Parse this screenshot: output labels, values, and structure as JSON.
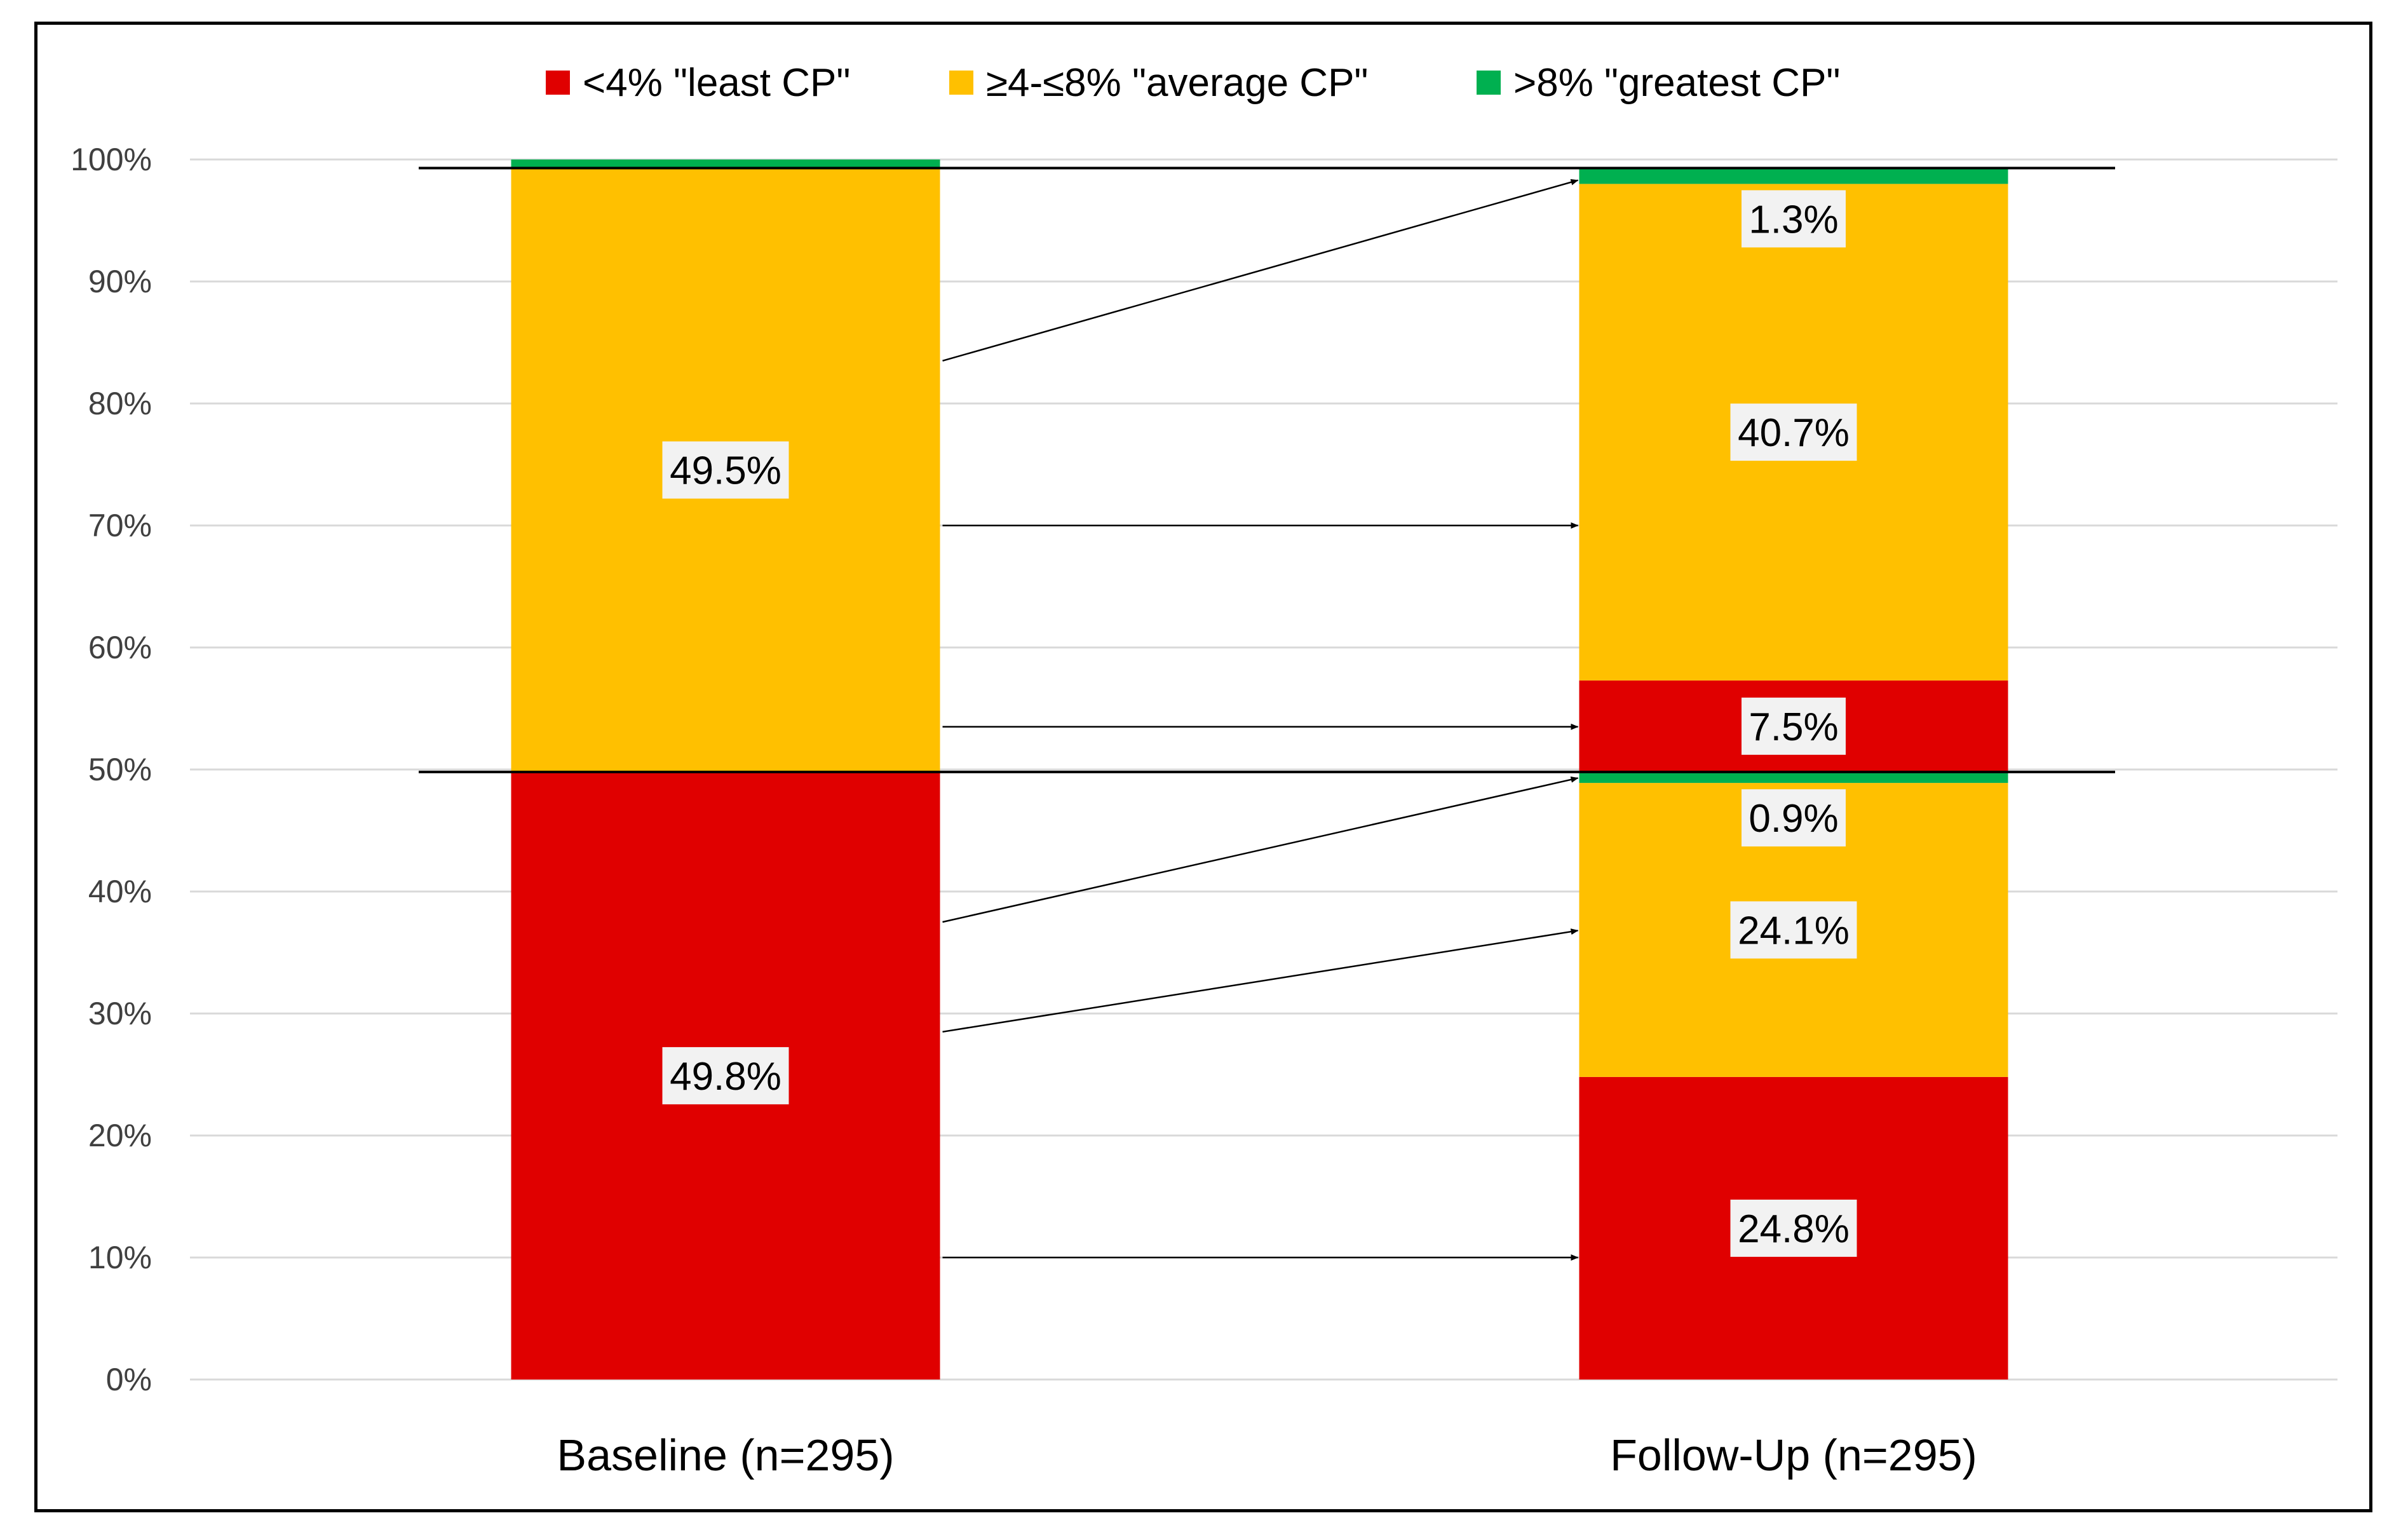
{
  "chart_data": {
    "type": "bar",
    "stacked": true,
    "categories": [
      "Baseline  (n=295)",
      "Follow-Up (n=295)"
    ],
    "ylim": [
      0,
      100
    ],
    "yticks": [
      "0%",
      "10%",
      "20%",
      "30%",
      "40%",
      "50%",
      "60%",
      "70%",
      "80%",
      "90%",
      "100%"
    ],
    "grid": true,
    "legend_position": "top",
    "legend": [
      {
        "label": "<4% \"least CP\"",
        "color": "#E00000"
      },
      {
        "label": "≥4-≤8% \"average CP\"",
        "color": "#FFC000"
      },
      {
        "label": ">8% \"greatest CP\"",
        "color": "#00B050"
      }
    ],
    "bars": [
      {
        "category": "Baseline  (n=295)",
        "segments": [
          {
            "class": "<4% \"least CP\"",
            "value": 49.8,
            "color": "#E00000",
            "label": "49.8%"
          },
          {
            "class": "≥4-≤8% \"average CP\"",
            "value": 49.5,
            "color": "#FFC000",
            "label": "49.5%"
          },
          {
            "class": ">8% \"greatest CP\"",
            "value": 0.7,
            "color": "#00B050",
            "label": ""
          }
        ]
      },
      {
        "category": "Follow-Up (n=295)",
        "segments": [
          {
            "class": "<4% \"least CP\"",
            "value": 24.8,
            "color": "#E00000",
            "label": "24.8%"
          },
          {
            "class": "≥4-≤8% \"average CP\"",
            "value": 24.1,
            "color": "#FFC000",
            "label": "24.1%"
          },
          {
            "class": ">8% \"greatest CP\"",
            "value": 0.9,
            "color": "#00B050",
            "label": "0.9%"
          },
          {
            "class": "<4% \"least CP\"",
            "value": 7.5,
            "color": "#E00000",
            "label": "7.5%"
          },
          {
            "class": "≥4-≤8% \"average CP\"",
            "value": 40.7,
            "color": "#FFC000",
            "label": "40.7%"
          },
          {
            "class": ">8% \"greatest CP\"",
            "value": 1.3,
            "color": "#00B050",
            "label": "1.3%"
          }
        ]
      }
    ],
    "reference_lines": [
      49.8,
      99.3
    ],
    "transitions": [
      {
        "from": 83.5,
        "to": 98.3
      },
      {
        "from": 70,
        "to": 70
      },
      {
        "from": 53.5,
        "to": 53.5
      },
      {
        "from": 37.5,
        "to": 49.3
      },
      {
        "from": 28.5,
        "to": 36.8
      },
      {
        "from": 10,
        "to": 10
      }
    ]
  }
}
